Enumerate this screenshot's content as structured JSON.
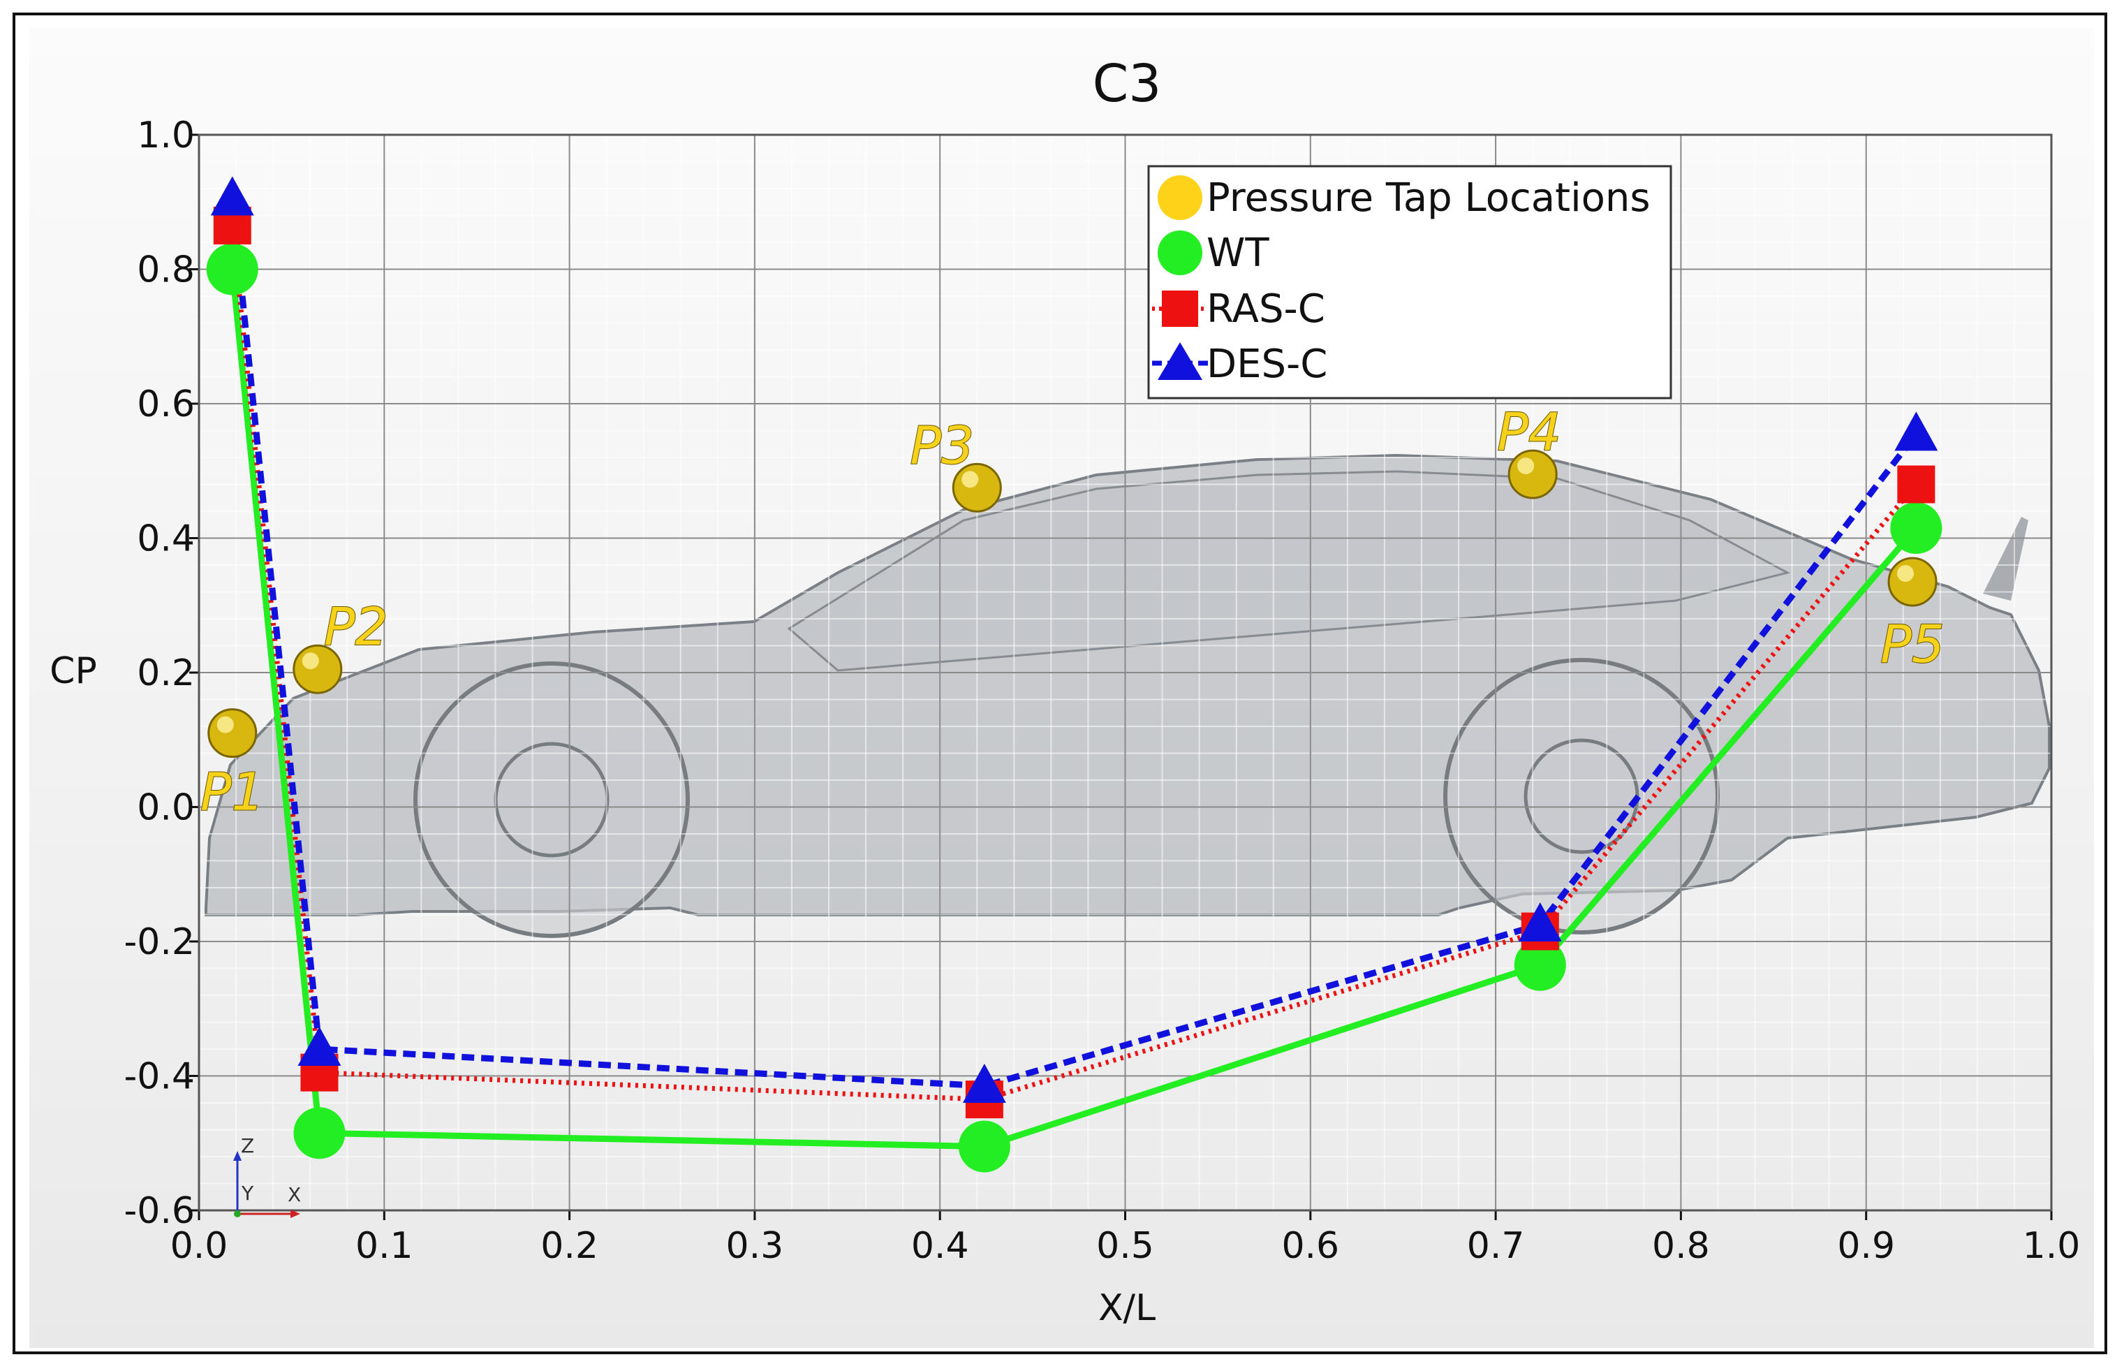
{
  "chart_data": {
    "type": "line",
    "title": "C3",
    "xlabel": "X/L",
    "ylabel": "CP",
    "xlim": [
      0.0,
      1.0
    ],
    "ylim": [
      -0.6,
      1.0
    ],
    "x_ticks": [
      "0.0",
      "0.1",
      "0.2",
      "0.3",
      "0.4",
      "0.5",
      "0.6",
      "0.7",
      "0.8",
      "0.9",
      "1.0"
    ],
    "y_ticks": [
      "-0.6",
      "-0.4",
      "-0.2",
      "0.0",
      "0.2",
      "0.4",
      "0.6",
      "0.8",
      "1.0"
    ],
    "grid": true,
    "legend_position": "top-right",
    "background_image": "race car side view (wireframe/transparent)",
    "series": [
      {
        "name": "Pressure Tap Locations",
        "style": "markers",
        "marker": "circle",
        "color": "#ffd700",
        "points": [
          {
            "label": "P1",
            "x": 0.018,
            "y": 0.11
          },
          {
            "label": "P2",
            "x": 0.064,
            "y": 0.205
          },
          {
            "label": "P3",
            "x": 0.42,
            "y": 0.475
          },
          {
            "label": "P4",
            "x": 0.72,
            "y": 0.495
          },
          {
            "label": "P5",
            "x": 0.925,
            "y": 0.335
          }
        ]
      },
      {
        "name": "WT",
        "style": "solid",
        "marker": "circle",
        "color": "#22ee22",
        "x": [
          0.018,
          0.065,
          0.424,
          0.724,
          0.927
        ],
        "y": [
          0.8,
          -0.485,
          -0.505,
          -0.235,
          0.415
        ]
      },
      {
        "name": "RAS-C",
        "style": "dotted",
        "marker": "square",
        "color": "#ee1111",
        "x": [
          0.018,
          0.065,
          0.424,
          0.724,
          0.927
        ],
        "y": [
          0.865,
          -0.395,
          -0.435,
          -0.185,
          0.48
        ]
      },
      {
        "name": "DES-C",
        "style": "dashed",
        "marker": "triangle",
        "color": "#1111dd",
        "x": [
          0.018,
          0.065,
          0.424,
          0.724,
          0.927
        ],
        "y": [
          0.905,
          -0.36,
          -0.415,
          -0.175,
          0.555
        ]
      }
    ]
  },
  "triad": {
    "z": "Z",
    "y": "Y",
    "x": "X"
  }
}
